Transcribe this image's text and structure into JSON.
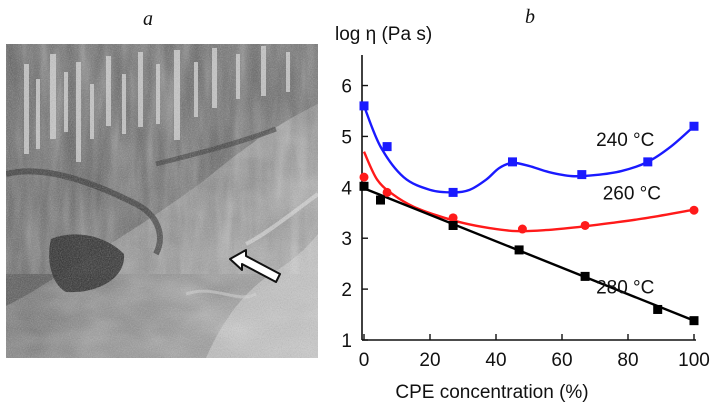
{
  "panels": {
    "a_label": "a",
    "b_label": "b"
  },
  "micrograph": {
    "description_icon": "arrow-pointer-icon"
  },
  "chart_data": {
    "type": "line",
    "ylabel": "log η (Pa s)",
    "xlabel": "CPE concentration (%)",
    "xlim": [
      0,
      100
    ],
    "ylim": [
      1,
      6.6
    ],
    "xticks": [
      0,
      20,
      40,
      60,
      80,
      100
    ],
    "xtick_labels": [
      "0",
      "20",
      "40",
      "60",
      "80",
      "100"
    ],
    "yticks": [
      1,
      2,
      3,
      4,
      5,
      6
    ],
    "ytick_labels": [
      "1",
      "2",
      "3",
      "4",
      "5",
      "6"
    ],
    "grid": false,
    "series": [
      {
        "name": "240 °C",
        "color": "#1a1aff",
        "marker": "square",
        "points": [
          [
            0,
            5.6
          ],
          [
            7,
            4.8
          ],
          [
            27,
            3.9
          ],
          [
            45,
            4.5
          ],
          [
            66,
            4.25
          ],
          [
            86,
            4.5
          ],
          [
            100,
            5.2
          ]
        ],
        "curve": [
          [
            0,
            5.6
          ],
          [
            5,
            4.8
          ],
          [
            12,
            4.2
          ],
          [
            20,
            3.95
          ],
          [
            27,
            3.9
          ],
          [
            32,
            3.95
          ],
          [
            37,
            4.15
          ],
          [
            41,
            4.38
          ],
          [
            45,
            4.48
          ],
          [
            50,
            4.42
          ],
          [
            56,
            4.3
          ],
          [
            63,
            4.22
          ],
          [
            70,
            4.24
          ],
          [
            78,
            4.32
          ],
          [
            86,
            4.5
          ],
          [
            93,
            4.8
          ],
          [
            100,
            5.2
          ]
        ]
      },
      {
        "name": "260 °C",
        "color": "#ff1a1a",
        "marker": "circle",
        "points": [
          [
            0,
            4.2
          ],
          [
            7,
            3.9
          ],
          [
            27,
            3.4
          ],
          [
            48,
            3.18
          ],
          [
            67,
            3.25
          ],
          [
            100,
            3.55
          ]
        ],
        "curve": [
          [
            0,
            4.7
          ],
          [
            4,
            4.15
          ],
          [
            9,
            3.85
          ],
          [
            15,
            3.62
          ],
          [
            22,
            3.45
          ],
          [
            30,
            3.3
          ],
          [
            38,
            3.2
          ],
          [
            46,
            3.14
          ],
          [
            55,
            3.16
          ],
          [
            65,
            3.22
          ],
          [
            75,
            3.3
          ],
          [
            86,
            3.4
          ],
          [
            100,
            3.56
          ]
        ]
      },
      {
        "name": "280 °C",
        "color": "#000000",
        "marker": "square",
        "points": [
          [
            0,
            4.02
          ],
          [
            5,
            3.75
          ],
          [
            27,
            3.25
          ],
          [
            47,
            2.77
          ],
          [
            67,
            2.25
          ],
          [
            89,
            1.6
          ],
          [
            100,
            1.38
          ]
        ],
        "curve": [
          [
            0,
            3.98
          ],
          [
            100,
            1.38
          ]
        ]
      }
    ],
    "annotations": [
      {
        "text": "240 °C",
        "series": "240 °C"
      },
      {
        "text": "260 °C",
        "series": "260 °C"
      },
      {
        "text": "280 °C",
        "series": "280 °C"
      }
    ]
  }
}
